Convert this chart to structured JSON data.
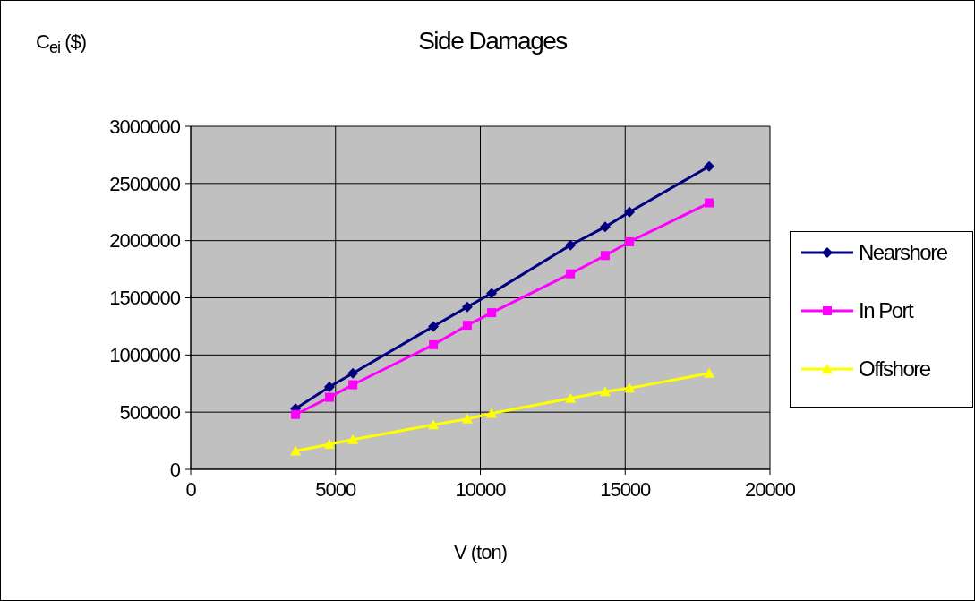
{
  "chart_data": {
    "type": "line",
    "title": "Side Damages",
    "xlabel": "V (ton)",
    "ylabel": "C$_{ei}$ ($)",
    "x": [
      3620,
      4790,
      5600,
      8380,
      9550,
      10390,
      13110,
      14310,
      15150,
      17900
    ],
    "series": [
      {
        "name": "Nearshore",
        "color": "#000080",
        "marker": "diamond",
        "values": [
          530000,
          720000,
          840000,
          1250000,
          1420000,
          1540000,
          1960000,
          2120000,
          2250000,
          2650000
        ]
      },
      {
        "name": "In Port",
        "color": "#ff00ff",
        "marker": "square",
        "values": [
          480000,
          630000,
          740000,
          1090000,
          1260000,
          1370000,
          1710000,
          1870000,
          1990000,
          2330000
        ]
      },
      {
        "name": "Offshore",
        "color": "#ffff00",
        "marker": "triangle",
        "values": [
          160000,
          220000,
          260000,
          390000,
          440000,
          490000,
          620000,
          680000,
          710000,
          840000
        ]
      }
    ],
    "xlim": [
      0,
      20000
    ],
    "xticks": [
      0,
      5000,
      10000,
      15000,
      20000
    ],
    "ylim": [
      0,
      3000000
    ],
    "yticks": [
      0,
      500000,
      1000000,
      1500000,
      2000000,
      2500000,
      3000000
    ],
    "grid": true,
    "legend": "right"
  }
}
